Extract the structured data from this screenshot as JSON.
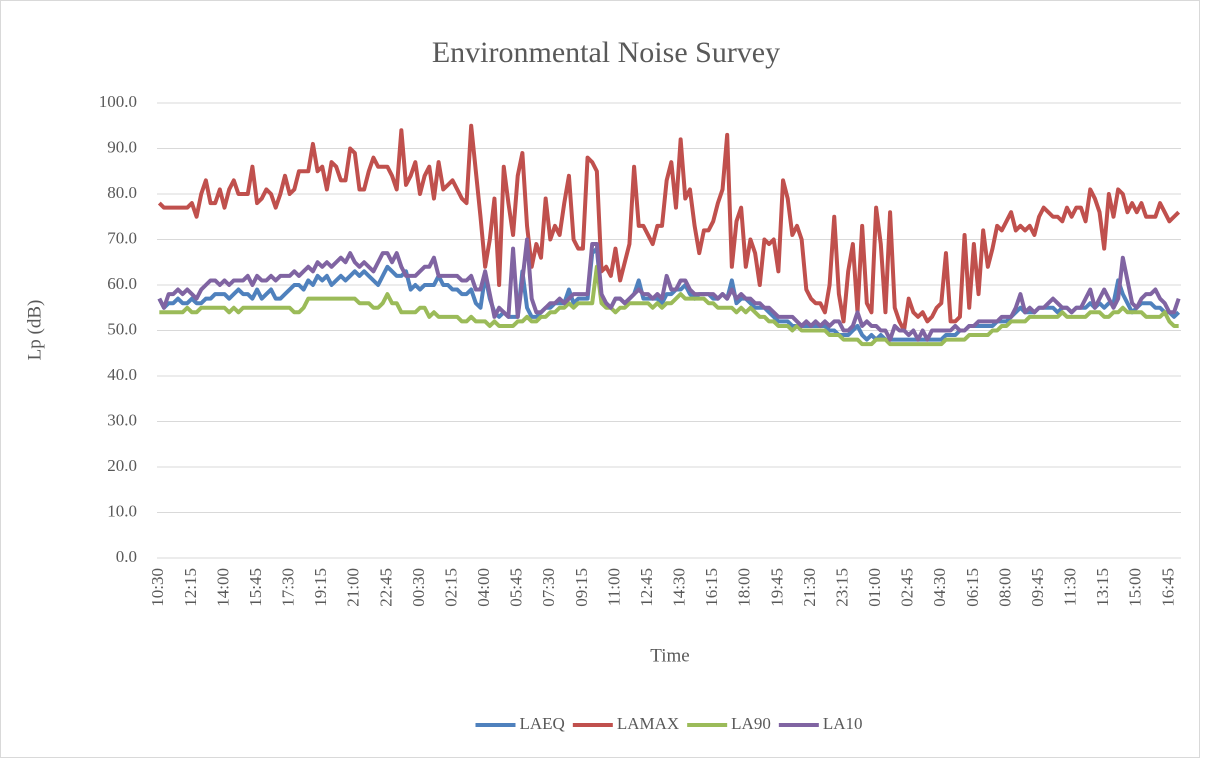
{
  "chart_data": {
    "type": "line",
    "title": "Environmental Noise Survey",
    "x_label": "Time",
    "y_label": "Lp (dB)",
    "legend": "bottom",
    "grid": true,
    "ylim": [
      0,
      100
    ],
    "yticks": [
      {
        "value": 0,
        "label": "0.0"
      },
      {
        "value": 10,
        "label": "10.0"
      },
      {
        "value": 20,
        "label": "20.0"
      },
      {
        "value": 30,
        "label": "30.0"
      },
      {
        "value": 40,
        "label": "40.0"
      },
      {
        "value": 50,
        "label": "50.0"
      },
      {
        "value": 60,
        "label": "60.0"
      },
      {
        "value": 70,
        "label": "70.0"
      },
      {
        "value": 80,
        "label": "80.0"
      },
      {
        "value": 90,
        "label": "90.0"
      },
      {
        "value": 100,
        "label": "100.0"
      }
    ],
    "categories": [
      "10:30",
      null,
      null,
      null,
      null,
      null,
      null,
      "12:15",
      null,
      null,
      null,
      null,
      null,
      null,
      "14:00",
      null,
      null,
      null,
      null,
      null,
      null,
      "15:45",
      null,
      null,
      null,
      null,
      null,
      null,
      "17:30",
      null,
      null,
      null,
      null,
      null,
      null,
      "19:15",
      null,
      null,
      null,
      null,
      null,
      null,
      "21:00",
      null,
      null,
      null,
      null,
      null,
      null,
      "22:45",
      null,
      null,
      null,
      null,
      null,
      null,
      "00:30",
      null,
      null,
      null,
      null,
      null,
      null,
      "02:15",
      null,
      null,
      null,
      null,
      null,
      null,
      "04:00",
      null,
      null,
      null,
      null,
      null,
      null,
      "05:45",
      null,
      null,
      null,
      null,
      null,
      null,
      "07:30",
      null,
      null,
      null,
      null,
      null,
      null,
      "09:15",
      null,
      null,
      null,
      null,
      null,
      null,
      "11:00",
      null,
      null,
      null,
      null,
      null,
      null,
      "12:45",
      null,
      null,
      null,
      null,
      null,
      null,
      "14:30",
      null,
      null,
      null,
      null,
      null,
      null,
      "16:15",
      null,
      null,
      null,
      null,
      null,
      null,
      "18:00",
      null,
      null,
      null,
      null,
      null,
      null,
      "19:45",
      null,
      null,
      null,
      null,
      null,
      null,
      "21:30",
      null,
      null,
      null,
      null,
      null,
      null,
      "23:15",
      null,
      null,
      null,
      null,
      null,
      null,
      "01:00",
      null,
      null,
      null,
      null,
      null,
      null,
      "02:45",
      null,
      null,
      null,
      null,
      null,
      null,
      "04:30",
      null,
      null,
      null,
      null,
      null,
      null,
      "06:15",
      null,
      null,
      null,
      null,
      null,
      null,
      "08:00",
      null,
      null,
      null,
      null,
      null,
      null,
      "09:45",
      null,
      null,
      null,
      null,
      null,
      null,
      "11:30",
      null,
      null,
      null,
      null,
      null,
      null,
      "13:15",
      null,
      null,
      null,
      null,
      null,
      null,
      "15:00",
      null,
      null,
      null,
      null,
      null,
      null,
      "16:45",
      null,
      null
    ],
    "series": [
      {
        "name": "LAEQ",
        "color": "#4f81bd",
        "values": [
          57,
          55,
          56,
          56,
          57,
          56,
          56,
          57,
          56,
          56,
          57,
          57,
          58,
          58,
          58,
          57,
          58,
          59,
          58,
          58,
          57,
          59,
          57,
          58,
          59,
          57,
          57,
          58,
          59,
          60,
          60,
          59,
          61,
          60,
          62,
          61,
          62,
          60,
          61,
          62,
          61,
          62,
          63,
          62,
          63,
          62,
          61,
          60,
          62,
          64,
          63,
          62,
          62,
          63,
          59,
          60,
          59,
          60,
          60,
          60,
          62,
          60,
          60,
          59,
          59,
          58,
          58,
          59,
          56,
          55,
          62,
          57,
          54,
          53,
          54,
          53,
          53,
          53,
          63,
          55,
          53,
          53,
          54,
          55,
          55,
          56,
          56,
          56,
          59,
          56,
          57,
          57,
          57,
          67,
          68,
          57,
          56,
          55,
          57,
          57,
          56,
          57,
          58,
          61,
          57,
          57,
          57,
          57,
          56,
          58,
          58,
          59,
          59,
          60,
          58,
          57,
          58,
          58,
          58,
          57,
          57,
          58,
          57,
          61,
          56,
          57,
          57,
          56,
          55,
          55,
          55,
          54,
          53,
          52,
          52,
          52,
          51,
          51,
          51,
          51,
          51,
          51,
          51,
          51,
          50,
          50,
          49,
          49,
          49,
          50,
          51,
          49,
          48,
          49,
          48,
          49,
          48,
          48,
          48,
          48,
          48,
          48,
          48,
          48,
          48,
          48,
          48,
          48,
          48,
          49,
          49,
          49,
          50,
          50,
          51,
          51,
          51,
          51,
          51,
          51,
          52,
          52,
          52,
          53,
          54,
          55,
          54,
          54,
          54,
          55,
          55,
          55,
          55,
          54,
          55,
          55,
          54,
          55,
          55,
          55,
          56,
          55,
          56,
          55,
          56,
          56,
          61,
          58,
          56,
          54,
          55,
          56,
          56,
          56,
          55,
          55,
          54,
          54,
          53,
          54
        ]
      },
      {
        "name": "LAMAX",
        "color": "#c0504d",
        "values": [
          78,
          77,
          77,
          77,
          77,
          77,
          77,
          78,
          75,
          80,
          83,
          78,
          78,
          81,
          77,
          81,
          83,
          80,
          80,
          80,
          86,
          78,
          79,
          81,
          80,
          77,
          80,
          84,
          80,
          81,
          85,
          85,
          85,
          91,
          85,
          86,
          81,
          87,
          86,
          83,
          83,
          90,
          89,
          81,
          81,
          85,
          88,
          86,
          86,
          86,
          84,
          81,
          94,
          82,
          84,
          87,
          80,
          84,
          86,
          79,
          87,
          81,
          82,
          83,
          81,
          79,
          78,
          95,
          85,
          75,
          64,
          70,
          79,
          60,
          86,
          78,
          71,
          84,
          89,
          73,
          64,
          69,
          66,
          79,
          70,
          73,
          71,
          78,
          84,
          70,
          68,
          68,
          88,
          87,
          85,
          63,
          64,
          62,
          68,
          61,
          65,
          69,
          86,
          73,
          73,
          71,
          69,
          73,
          73,
          83,
          87,
          77,
          92,
          79,
          81,
          73,
          67,
          72,
          72,
          74,
          78,
          81,
          93,
          64,
          74,
          77,
          64,
          70,
          67,
          60,
          70,
          69,
          70,
          63,
          83,
          79,
          71,
          73,
          70,
          59,
          57,
          56,
          56,
          54,
          60,
          75,
          58,
          52,
          63,
          69,
          54,
          73,
          56,
          54,
          77,
          69,
          54,
          76,
          55,
          52,
          50,
          57,
          54,
          53,
          54,
          52,
          53,
          55,
          56,
          67,
          52,
          52,
          53,
          71,
          55,
          69,
          58,
          72,
          64,
          68,
          73,
          72,
          74,
          76,
          72,
          73,
          72,
          73,
          71,
          75,
          77,
          76,
          75,
          75,
          74,
          77,
          75,
          77,
          77,
          74,
          81,
          79,
          76,
          68,
          80,
          75,
          81,
          80,
          76,
          78,
          76,
          78,
          75,
          75,
          75,
          78,
          76,
          74,
          75,
          76
        ]
      },
      {
        "name": "LA90",
        "color": "#9bbb59",
        "values": [
          54,
          54,
          54,
          54,
          54,
          54,
          55,
          54,
          54,
          55,
          55,
          55,
          55,
          55,
          55,
          54,
          55,
          54,
          55,
          55,
          55,
          55,
          55,
          55,
          55,
          55,
          55,
          55,
          55,
          54,
          54,
          55,
          57,
          57,
          57,
          57,
          57,
          57,
          57,
          57,
          57,
          57,
          57,
          56,
          56,
          56,
          55,
          55,
          56,
          58,
          56,
          56,
          54,
          54,
          54,
          54,
          55,
          55,
          53,
          54,
          53,
          53,
          53,
          53,
          53,
          52,
          52,
          53,
          52,
          52,
          52,
          51,
          52,
          51,
          51,
          51,
          51,
          52,
          52,
          53,
          52,
          52,
          53,
          53,
          54,
          54,
          55,
          55,
          56,
          55,
          56,
          56,
          56,
          56,
          64,
          56,
          55,
          55,
          54,
          55,
          55,
          56,
          56,
          56,
          56,
          56,
          55,
          56,
          55,
          56,
          56,
          57,
          58,
          57,
          57,
          57,
          57,
          57,
          56,
          56,
          55,
          55,
          55,
          55,
          54,
          55,
          54,
          55,
          54,
          53,
          53,
          52,
          52,
          51,
          51,
          51,
          50,
          51,
          50,
          50,
          50,
          50,
          50,
          50,
          49,
          49,
          49,
          48,
          48,
          48,
          48,
          47,
          47,
          47,
          48,
          48,
          48,
          47,
          47,
          47,
          47,
          47,
          47,
          47,
          47,
          47,
          47,
          47,
          47,
          48,
          48,
          48,
          48,
          48,
          49,
          49,
          49,
          49,
          49,
          50,
          50,
          51,
          51,
          52,
          52,
          52,
          52,
          53,
          53,
          53,
          53,
          53,
          53,
          53,
          54,
          53,
          53,
          53,
          53,
          53,
          54,
          54,
          54,
          53,
          53,
          54,
          54,
          55,
          54,
          54,
          54,
          54,
          53,
          53,
          53,
          53,
          54,
          52,
          51,
          51
        ]
      },
      {
        "name": "LA10",
        "color": "#8064a2",
        "values": [
          57,
          55,
          58,
          58,
          59,
          58,
          59,
          58,
          57,
          59,
          60,
          61,
          61,
          60,
          61,
          60,
          61,
          61,
          61,
          62,
          60,
          62,
          61,
          61,
          62,
          61,
          62,
          62,
          62,
          63,
          62,
          63,
          64,
          63,
          65,
          64,
          65,
          64,
          65,
          66,
          65,
          67,
          65,
          64,
          65,
          64,
          63,
          65,
          67,
          67,
          65,
          67,
          64,
          62,
          62,
          62,
          63,
          64,
          64,
          66,
          62,
          62,
          62,
          62,
          62,
          61,
          61,
          62,
          59,
          59,
          63,
          58,
          53,
          55,
          54,
          53,
          68,
          53,
          61,
          70,
          57,
          54,
          54,
          55,
          56,
          56,
          57,
          56,
          57,
          58,
          58,
          58,
          58,
          69,
          69,
          58,
          56,
          55,
          57,
          57,
          56,
          57,
          58,
          59,
          58,
          58,
          57,
          58,
          57,
          62,
          59,
          59,
          61,
          61,
          59,
          58,
          58,
          58,
          58,
          58,
          57,
          58,
          57,
          59,
          57,
          58,
          57,
          57,
          56,
          56,
          55,
          55,
          54,
          53,
          53,
          53,
          53,
          52,
          51,
          52,
          51,
          52,
          51,
          52,
          51,
          52,
          52,
          50,
          50,
          51,
          54,
          51,
          52,
          51,
          51,
          50,
          50,
          48,
          51,
          50,
          50,
          49,
          50,
          48,
          50,
          48,
          50,
          50,
          50,
          50,
          50,
          51,
          50,
          50,
          51,
          51,
          52,
          52,
          52,
          52,
          52,
          53,
          53,
          53,
          55,
          58,
          54,
          55,
          54,
          55,
          55,
          56,
          57,
          56,
          55,
          55,
          54,
          55,
          55,
          57,
          59,
          55,
          57,
          59,
          57,
          55,
          57,
          66,
          61,
          56,
          55,
          57,
          58,
          58,
          59,
          57,
          56,
          54,
          54,
          57
        ]
      }
    ]
  }
}
